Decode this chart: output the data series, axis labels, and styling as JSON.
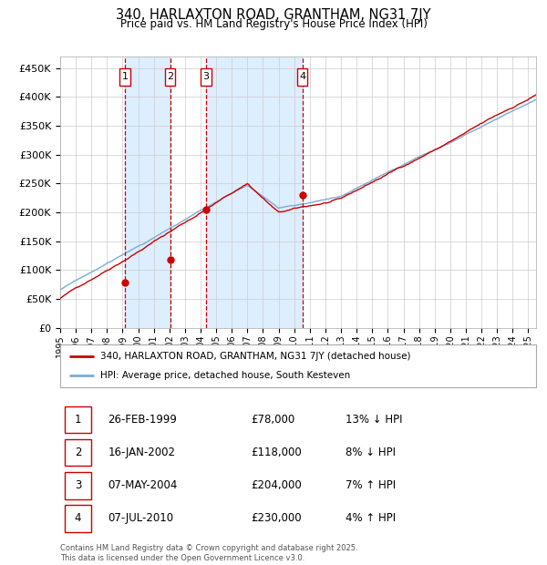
{
  "title1": "340, HARLAXTON ROAD, GRANTHAM, NG31 7JY",
  "title2": "Price paid vs. HM Land Registry's House Price Index (HPI)",
  "ylim": [
    0,
    470000
  ],
  "yticks": [
    0,
    50000,
    100000,
    150000,
    200000,
    250000,
    300000,
    350000,
    400000,
    450000
  ],
  "ytick_labels": [
    "£0",
    "£50K",
    "£100K",
    "£150K",
    "£200K",
    "£250K",
    "£300K",
    "£350K",
    "£400K",
    "£450K"
  ],
  "xlim_start": 1995.0,
  "xlim_end": 2025.5,
  "xticks": [
    1995,
    1996,
    1997,
    1998,
    1999,
    2000,
    2001,
    2002,
    2003,
    2004,
    2005,
    2006,
    2007,
    2008,
    2009,
    2010,
    2011,
    2012,
    2013,
    2014,
    2015,
    2016,
    2017,
    2018,
    2019,
    2020,
    2021,
    2022,
    2023,
    2024,
    2025
  ],
  "sale_dates": [
    1999.15,
    2002.05,
    2004.35,
    2010.52
  ],
  "sale_prices": [
    78000,
    118000,
    204000,
    230000
  ],
  "sale_labels": [
    "1",
    "2",
    "3",
    "4"
  ],
  "red_line_color": "#cc0000",
  "blue_line_color": "#7aadd4",
  "sale_dot_color": "#cc0000",
  "vline_color": "#cc0000",
  "shade_color": "#ddeeff",
  "grid_color": "#cccccc",
  "bg_color": "#ffffff",
  "legend_red": "340, HARLAXTON ROAD, GRANTHAM, NG31 7JY (detached house)",
  "legend_blue": "HPI: Average price, detached house, South Kesteven",
  "table_rows": [
    [
      "1",
      "26-FEB-1999",
      "£78,000",
      "13% ↓ HPI"
    ],
    [
      "2",
      "16-JAN-2002",
      "£118,000",
      "8% ↓ HPI"
    ],
    [
      "3",
      "07-MAY-2004",
      "£204,000",
      "7% ↑ HPI"
    ],
    [
      "4",
      "07-JUL-2010",
      "£230,000",
      "4% ↑ HPI"
    ]
  ],
  "footnote": "Contains HM Land Registry data © Crown copyright and database right 2025.\nThis data is licensed under the Open Government Licence v3.0."
}
